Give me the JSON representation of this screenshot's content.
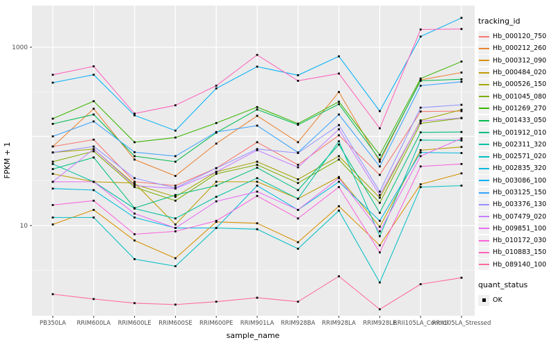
{
  "chart_data": {
    "type": "line",
    "xlabel": "sample_name",
    "ylabel": "FPKM + 1",
    "y_scale": "log10",
    "ylim": [
      1,
      2200
    ],
    "y_major_ticks": [
      {
        "label": "1000",
        "value": 1000
      },
      {
        "label": "10",
        "value": 10
      }
    ],
    "y_minor_gridlines": [
      3.162,
      31.62,
      316.2
    ],
    "grid": "on",
    "panel_background": "#EBEBEB",
    "gridline_color": "#FFFFFF",
    "point_color": "#000000",
    "point_shape": "filled-square",
    "legend_position": "right",
    "legend_title": "tracking_id",
    "quant_legend": {
      "title": "quant_status",
      "items": [
        "OK"
      ]
    },
    "categories": [
      "PB350LA",
      "RRIM600LA",
      "RRIM600LE",
      "RRIM600SE",
      "RRIM600PE",
      "RRIM901LA",
      "RRIM928BA",
      "RRIM928LA",
      "RRIM928LE",
      "RRII105LA_Control",
      "RRII105LA_Stressed"
    ],
    "series": [
      {
        "name": "Hb_000120_750",
        "color": "#F8766D",
        "values": [
          77,
          92,
          31,
          28,
          44,
          86,
          48,
          103,
          37,
          190,
          192
        ]
      },
      {
        "name": "Hb_000212_260",
        "color": "#EA8331",
        "values": [
          77,
          204,
          55,
          36,
          83,
          170,
          86,
          314,
          52,
          430,
          520
        ]
      },
      {
        "name": "Hb_000312_090",
        "color": "#D89000",
        "values": [
          10.3,
          15,
          6.8,
          4.3,
          11,
          10.6,
          6.5,
          16.5,
          6.0,
          29,
          38.5
        ]
      },
      {
        "name": "Hb_000484_020",
        "color": "#C09B00",
        "values": [
          38,
          31,
          30,
          10.3,
          31,
          31,
          20,
          35,
          9.7,
          70,
          76
        ]
      },
      {
        "name": "Hb_000526_150",
        "color": "#A3A500",
        "values": [
          66,
          72,
          29,
          21,
          40,
          52,
          33,
          60,
          20.5,
          151,
          199
        ]
      },
      {
        "name": "Hb_001045_080",
        "color": "#7CAE00",
        "values": [
          52,
          68,
          27,
          19,
          38,
          48,
          30,
          55,
          18,
          140,
          160
        ]
      },
      {
        "name": "Hb_001269_270",
        "color": "#39B600",
        "values": [
          158,
          248,
          86,
          97,
          141,
          213,
          139,
          245,
          62,
          445,
          690
        ]
      },
      {
        "name": "Hb_001433_050",
        "color": "#00BB4E",
        "values": [
          138,
          176,
          60,
          52,
          110,
          200,
          135,
          230,
          55,
          420,
          437
        ]
      },
      {
        "name": "Hb_001912_010",
        "color": "#00BF7D",
        "values": [
          43,
          58,
          15.7,
          22,
          28,
          44.5,
          25,
          81,
          13.9,
          111,
          112
        ]
      },
      {
        "name": "Hb_002311_320",
        "color": "#00C1A3",
        "values": [
          49,
          31,
          15.5,
          12,
          21,
          34,
          20,
          88,
          7.6,
          91,
          90
        ]
      },
      {
        "name": "Hb_002571_020",
        "color": "#00BFC4",
        "values": [
          12.3,
          12.3,
          4.2,
          3.5,
          9.4,
          9.1,
          5.5,
          14.7,
          2.3,
          27,
          28
        ]
      },
      {
        "name": "Hb_002835_320",
        "color": "#00BAE0",
        "values": [
          26,
          25,
          12.3,
          9.4,
          9.4,
          28,
          15,
          31,
          11.3,
          66,
          65
        ]
      },
      {
        "name": "Hb_003086_100",
        "color": "#00B0F6",
        "values": [
          400,
          491,
          172,
          116,
          345,
          605,
          485,
          790,
          192,
          1315,
          2130
        ]
      },
      {
        "name": "Hb_003125_150",
        "color": "#35A2FF",
        "values": [
          100,
          147,
          66.5,
          60,
          112,
          132,
          66,
          176,
          46,
          370,
          410
        ]
      },
      {
        "name": "Hb_003376_130",
        "color": "#9590FF",
        "values": [
          66,
          77,
          34,
          26.4,
          44,
          72,
          65,
          134,
          24,
          210,
          226
        ]
      },
      {
        "name": "Hb_007479_020",
        "color": "#C77CFF",
        "values": [
          31,
          72,
          28,
          26,
          40,
          70,
          45,
          120,
          22,
          148,
          161
        ]
      },
      {
        "name": "Hb_009851_100",
        "color": "#E76BF3",
        "values": [
          31,
          31,
          13.6,
          9.4,
          18.7,
          24,
          15,
          34,
          8.6,
          60,
          95
        ]
      },
      {
        "name": "Hb_010172_030",
        "color": "#FA62DB",
        "values": [
          17,
          19,
          8.0,
          8.6,
          11.3,
          21.5,
          12,
          27,
          5.0,
          46,
          49
        ]
      },
      {
        "name": "Hb_010883_150",
        "color": "#FF62BC",
        "values": [
          490,
          610,
          180,
          223,
          370,
          820,
          420,
          506,
          123,
          1580,
          1600
        ]
      },
      {
        "name": "Hb_089140_100",
        "color": "#FF6A98",
        "values": [
          1.7,
          1.5,
          1.35,
          1.3,
          1.4,
          1.55,
          1.4,
          2.7,
          1.15,
          2.2,
          2.6
        ]
      }
    ]
  }
}
